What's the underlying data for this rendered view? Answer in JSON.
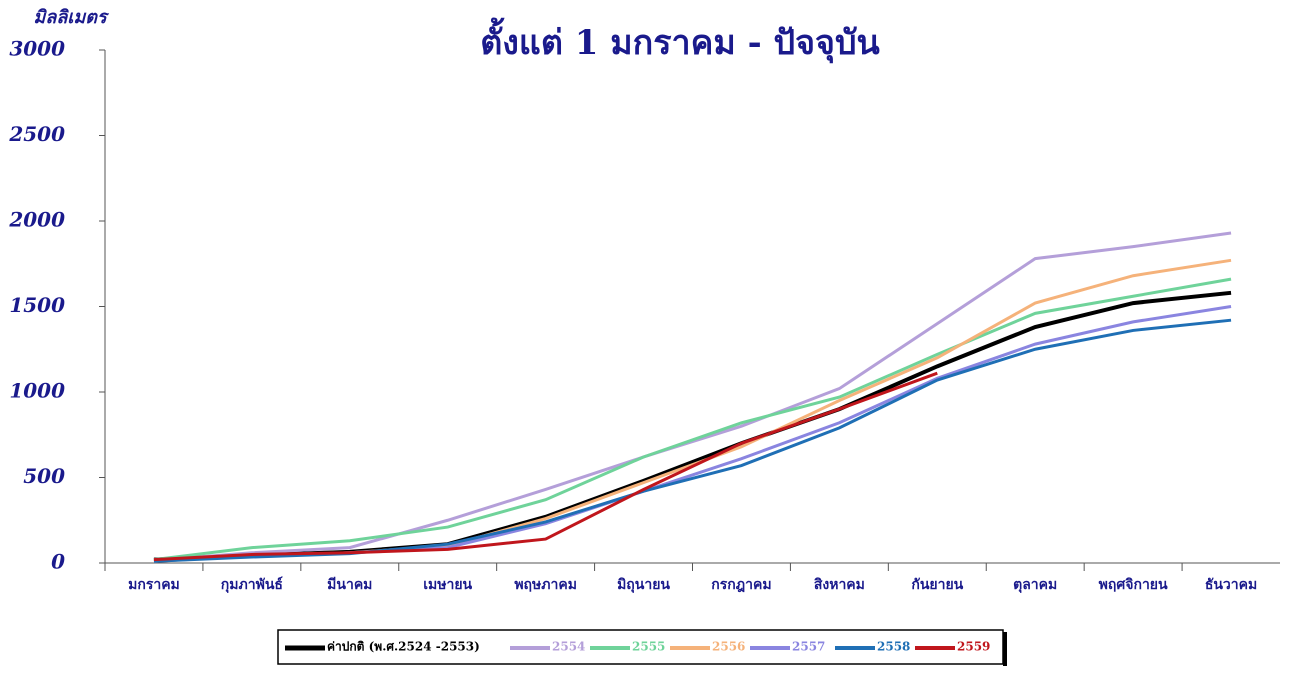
{
  "chart_data": {
    "type": "line",
    "title": "ตั้งแต่ 1 มกราคม - ปัจจุบัน",
    "y_label": "มิลลิเมตร",
    "categories": [
      "มกราคม",
      "กุมภาพันธ์",
      "มีนาคม",
      "เมษายน",
      "พฤษภาคม",
      "มิถุนายน",
      "กรกฎาคม",
      "สิงหาคม",
      "กันยายน",
      "ตุลาคม",
      "พฤศจิกายน",
      "ธันวาคม"
    ],
    "ylim": [
      0,
      3000
    ],
    "yticks": [
      0,
      500,
      1000,
      1500,
      2000,
      2500,
      3000
    ],
    "series": [
      {
        "name": "ค่าปกติ (พ.ศ.2524 -2553)",
        "color": "#000000",
        "values": [
          20,
          45,
          65,
          110,
          270,
          480,
          700,
          900,
          1150,
          1380,
          1520,
          1580
        ]
      },
      {
        "name": "2554",
        "color": "#b49fd9",
        "values": [
          15,
          60,
          90,
          250,
          430,
          620,
          800,
          1020,
          1400,
          1780,
          1850,
          1930
        ]
      },
      {
        "name": "2555",
        "color": "#6fd39a",
        "values": [
          20,
          90,
          130,
          210,
          370,
          620,
          820,
          970,
          1220,
          1460,
          1560,
          1660
        ]
      },
      {
        "name": "2556",
        "color": "#f5b27a",
        "values": [
          10,
          40,
          60,
          100,
          260,
          470,
          680,
          950,
          1200,
          1520,
          1680,
          1770
        ]
      },
      {
        "name": "2557",
        "color": "#8a85e0",
        "values": [
          10,
          40,
          60,
          90,
          230,
          420,
          610,
          820,
          1080,
          1280,
          1410,
          1500
        ]
      },
      {
        "name": "2558",
        "color": "#1f6fb5",
        "values": [
          10,
          35,
          55,
          110,
          240,
          420,
          570,
          790,
          1070,
          1250,
          1360,
          1420
        ]
      },
      {
        "name": "2559",
        "color": "#c0161c",
        "values": [
          20,
          50,
          60,
          80,
          140,
          430,
          700,
          900,
          1110,
          null,
          null,
          null
        ]
      }
    ]
  }
}
